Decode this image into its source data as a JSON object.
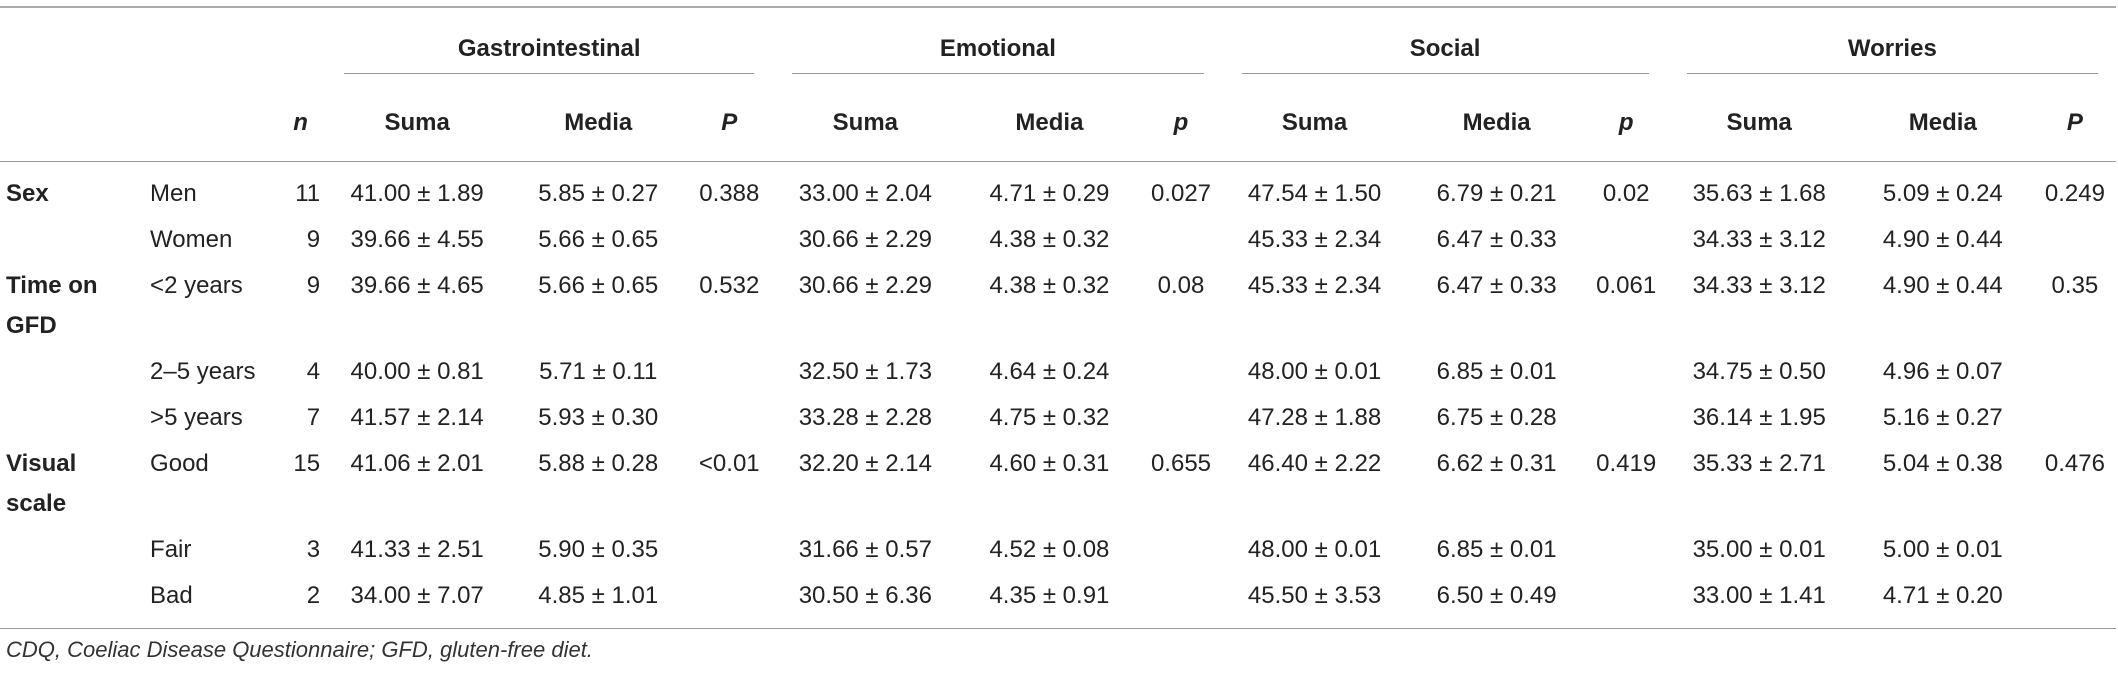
{
  "table": {
    "groups": [
      "Gastrointestinal",
      "Emotional",
      "Social",
      "Worries"
    ],
    "subheaders": {
      "n": "n",
      "cols": [
        "Suma",
        "Media",
        "P",
        "Suma",
        "Media",
        "p",
        "Suma",
        "Media",
        "p",
        "Suma",
        "Media",
        "P"
      ]
    },
    "sections": [
      {
        "label": "Sex",
        "rows": [
          {
            "label": "Men",
            "n": 11,
            "cells": [
              "41.00 ± 1.89",
              "5.85 ± 0.27",
              "0.388",
              "33.00 ± 2.04",
              "4.71 ± 0.29",
              "0.027",
              "47.54 ± 1.50",
              "6.79 ± 0.21",
              "0.02",
              "35.63 ± 1.68",
              "5.09 ± 0.24",
              "0.249"
            ]
          },
          {
            "label": "Women",
            "n": 9,
            "cells": [
              "39.66 ± 4.55",
              "5.66 ± 0.65",
              null,
              "30.66 ± 2.29",
              "4.38 ± 0.32",
              null,
              "45.33 ± 2.34",
              "6.47 ± 0.33",
              null,
              "34.33 ± 3.12",
              "4.90 ± 0.44",
              null
            ]
          }
        ]
      },
      {
        "label": "Time on GFD",
        "rows": [
          {
            "label": "<2 years",
            "n": 9,
            "cells": [
              "39.66 ± 4.65",
              "5.66 ± 0.65",
              "0.532",
              "30.66 ± 2.29",
              "4.38 ± 0.32",
              "0.08",
              "45.33 ± 2.34",
              "6.47 ± 0.33",
              "0.061",
              "34.33 ± 3.12",
              "4.90 ± 0.44",
              "0.35"
            ]
          },
          {
            "label": "2–5 years",
            "n": 4,
            "cells": [
              "40.00 ± 0.81",
              "5.71 ± 0.11",
              null,
              "32.50 ± 1.73",
              "4.64 ± 0.24",
              null,
              "48.00 ± 0.01",
              "6.85 ± 0.01",
              null,
              "34.75 ± 0.50",
              "4.96 ± 0.07",
              null
            ]
          },
          {
            "label": ">5 years",
            "n": 7,
            "cells": [
              "41.57 ± 2.14",
              "5.93 ± 0.30",
              null,
              "33.28 ± 2.28",
              "4.75 ± 0.32",
              null,
              "47.28 ± 1.88",
              "6.75 ± 0.28",
              null,
              "36.14 ± 1.95",
              "5.16 ± 0.27",
              null
            ]
          }
        ]
      },
      {
        "label": "Visual scale",
        "rows": [
          {
            "label": "Good",
            "n": 15,
            "cells": [
              "41.06 ± 2.01",
              "5.88 ± 0.28",
              "<0.01",
              "32.20 ± 2.14",
              "4.60 ± 0.31",
              "0.655",
              "46.40 ± 2.22",
              "6.62 ± 0.31",
              "0.419",
              "35.33 ± 2.71",
              "5.04 ± 0.38",
              "0.476"
            ]
          },
          {
            "label": "Fair",
            "n": 3,
            "cells": [
              "41.33 ± 2.51",
              "5.90 ± 0.35",
              null,
              "31.66 ± 0.57",
              "4.52 ± 0.08",
              null,
              "48.00 ± 0.01",
              "6.85 ± 0.01",
              null,
              "35.00 ± 0.01",
              "5.00 ± 0.01",
              null
            ]
          },
          {
            "label": "Bad",
            "n": 2,
            "cells": [
              "34.00 ± 7.07",
              "4.85 ± 1.01",
              null,
              "30.50 ± 6.36",
              "4.35 ± 0.91",
              null,
              "45.50 ± 3.53",
              "6.50 ± 0.49",
              null,
              "33.00 ± 1.41",
              "4.71 ± 0.20",
              null
            ]
          }
        ]
      }
    ],
    "footnote": "CDQ, Coeliac Disease Questionnaire; GFD, gluten-free diet."
  }
}
